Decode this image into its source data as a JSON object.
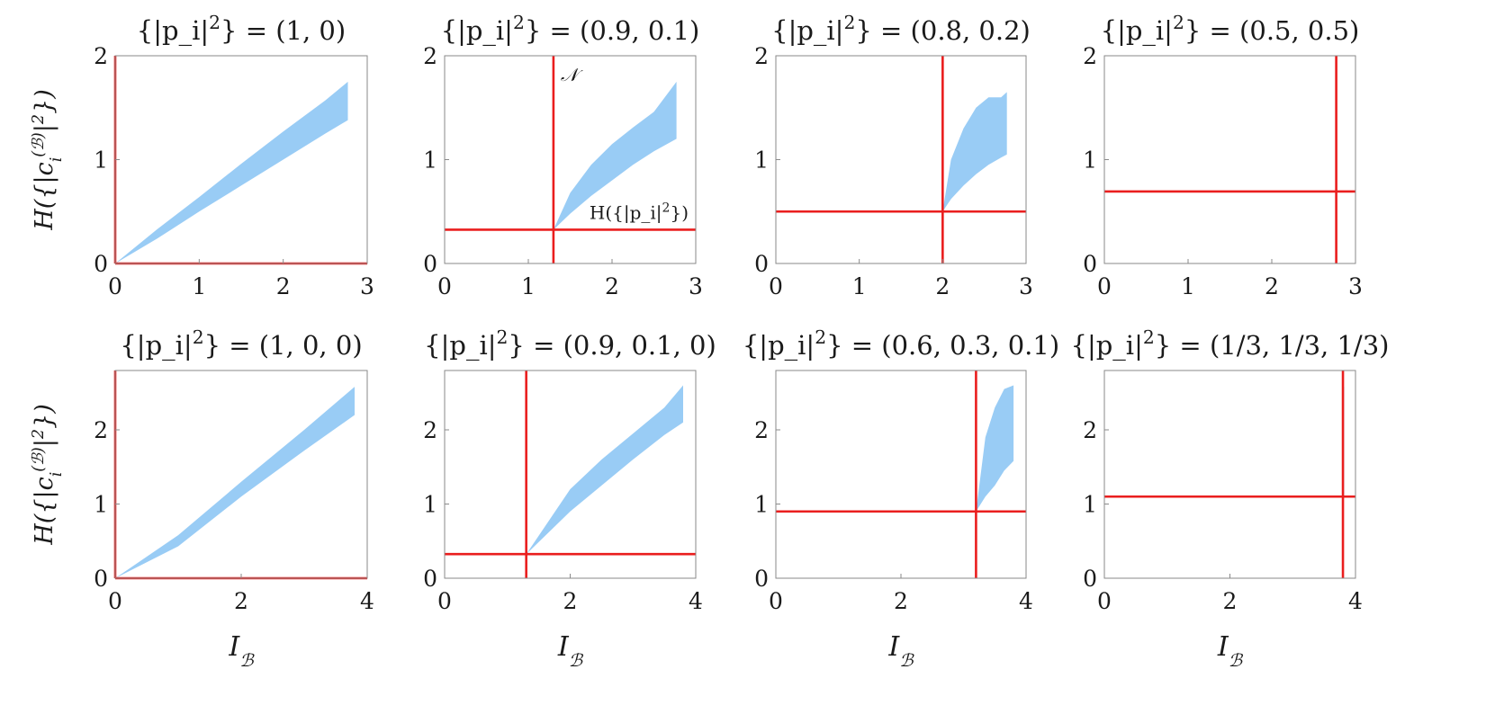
{
  "colors": {
    "band": "#99ccf5",
    "threshold_line": "#ea1e1e",
    "axis_frame": "#8a8a8a"
  },
  "chart_data": [
    {
      "type": "area",
      "title": "{|p_i|²} = (1, 0)",
      "xlabel": "",
      "ylabel": "H({|c_i^(B)|²})",
      "xlim": [
        0,
        3
      ],
      "ylim": [
        0,
        2
      ],
      "xticks": [
        "0",
        "1",
        "2",
        "3"
      ],
      "yticks": [
        "0",
        "1",
        "2"
      ],
      "N": 0,
      "H_p": 0,
      "band": {
        "x": [
          0,
          0.5,
          1,
          1.5,
          2,
          2.5,
          2.77
        ],
        "lower": [
          0,
          0.24,
          0.5,
          0.75,
          1.0,
          1.25,
          1.38
        ],
        "upper": [
          0,
          0.33,
          0.64,
          0.96,
          1.27,
          1.57,
          1.75
        ]
      },
      "annotations": []
    },
    {
      "type": "area",
      "title": "{|p_i|²} = (0.9, 0.1)",
      "xlabel": "",
      "ylabel": "",
      "xlim": [
        0,
        3
      ],
      "ylim": [
        0,
        2
      ],
      "xticks": [
        "0",
        "1",
        "2",
        "3"
      ],
      "yticks": [
        "0",
        "1",
        "2"
      ],
      "N": 1.3,
      "H_p": 0.325,
      "band": {
        "x": [
          1.3,
          1.5,
          1.75,
          2,
          2.25,
          2.5,
          2.77
        ],
        "lower": [
          0.325,
          0.48,
          0.65,
          0.8,
          0.95,
          1.08,
          1.2
        ],
        "upper": [
          0.325,
          0.68,
          0.95,
          1.15,
          1.31,
          1.46,
          1.75
        ]
      },
      "annotations": [
        "𝒩",
        "H({|p_i|²})"
      ]
    },
    {
      "type": "area",
      "title": "{|p_i|²} = (0.8, 0.2)",
      "xlabel": "",
      "ylabel": "",
      "xlim": [
        0,
        3
      ],
      "ylim": [
        0,
        2
      ],
      "xticks": [
        "0",
        "1",
        "2",
        "3"
      ],
      "yticks": [
        "0",
        "1",
        "2"
      ],
      "N": 2.0,
      "H_p": 0.5,
      "band": {
        "x": [
          2.0,
          2.1,
          2.25,
          2.4,
          2.55,
          2.7,
          2.77
        ],
        "lower": [
          0.5,
          0.62,
          0.75,
          0.86,
          0.95,
          1.02,
          1.05
        ],
        "upper": [
          0.5,
          1.0,
          1.3,
          1.5,
          1.6,
          1.6,
          1.65
        ]
      },
      "annotations": []
    },
    {
      "type": "area",
      "title": "{|p_i|²} = (0.5, 0.5)",
      "xlabel": "",
      "ylabel": "",
      "xlim": [
        0,
        3
      ],
      "ylim": [
        0,
        2
      ],
      "xticks": [
        "0",
        "1",
        "2",
        "3"
      ],
      "yticks": [
        "0",
        "1",
        "2"
      ],
      "N": 2.77,
      "H_p": 0.693,
      "band": {
        "x": [
          2.76,
          2.78
        ],
        "lower": [
          0.693,
          0.693
        ],
        "upper": [
          1.8,
          1.8
        ]
      },
      "annotations": []
    },
    {
      "type": "area",
      "title": "{|p_i|²} = (1, 0, 0)",
      "xlabel": "I_B",
      "ylabel": "H({|c_i^(B)|²})",
      "xlim": [
        0,
        4
      ],
      "ylim": [
        0,
        2.8
      ],
      "xticks": [
        "0",
        "2",
        "4"
      ],
      "yticks": [
        "0",
        "1",
        "2"
      ],
      "N": 0,
      "H_p": 0,
      "band": {
        "x": [
          0,
          1,
          2,
          3,
          3.8
        ],
        "lower": [
          0,
          0.43,
          1.1,
          1.72,
          2.2
        ],
        "upper": [
          0,
          0.58,
          1.3,
          2.0,
          2.58
        ]
      },
      "annotations": []
    },
    {
      "type": "area",
      "title": "{|p_i|²} = (0.9, 0.1, 0)",
      "xlabel": "I_B",
      "ylabel": "",
      "xlim": [
        0,
        4
      ],
      "ylim": [
        0,
        2.8
      ],
      "xticks": [
        "0",
        "2",
        "4"
      ],
      "yticks": [
        "0",
        "1",
        "2"
      ],
      "N": 1.3,
      "H_p": 0.325,
      "band": {
        "x": [
          1.3,
          2,
          2.5,
          3,
          3.5,
          3.8
        ],
        "lower": [
          0.325,
          0.9,
          1.25,
          1.6,
          1.93,
          2.1
        ],
        "upper": [
          0.325,
          1.2,
          1.6,
          1.95,
          2.3,
          2.6
        ]
      },
      "annotations": []
    },
    {
      "type": "area",
      "title": "{|p_i|²} = (0.6, 0.3, 0.1)",
      "xlabel": "I_B",
      "ylabel": "",
      "xlim": [
        0,
        4
      ],
      "ylim": [
        0,
        2.8
      ],
      "xticks": [
        "0",
        "2",
        "4"
      ],
      "yticks": [
        "0",
        "1",
        "2"
      ],
      "N": 3.2,
      "H_p": 0.9,
      "band": {
        "x": [
          3.2,
          3.35,
          3.5,
          3.65,
          3.8
        ],
        "lower": [
          0.9,
          1.1,
          1.25,
          1.45,
          1.58
        ],
        "upper": [
          0.9,
          1.9,
          2.3,
          2.55,
          2.6
        ]
      },
      "annotations": []
    },
    {
      "type": "area",
      "title": "{|p_i|²} = (1/3, 1/3, 1/3)",
      "xlabel": "I_B",
      "ylabel": "",
      "xlim": [
        0,
        4
      ],
      "ylim": [
        0,
        2.8
      ],
      "xticks": [
        "0",
        "2",
        "4"
      ],
      "yticks": [
        "0",
        "1",
        "2"
      ],
      "N": 3.8,
      "H_p": 1.1,
      "band": {
        "x": [
          3.79,
          3.82
        ],
        "lower": [
          1.1,
          1.1
        ],
        "upper": [
          2.58,
          2.58
        ]
      },
      "annotations": []
    }
  ]
}
